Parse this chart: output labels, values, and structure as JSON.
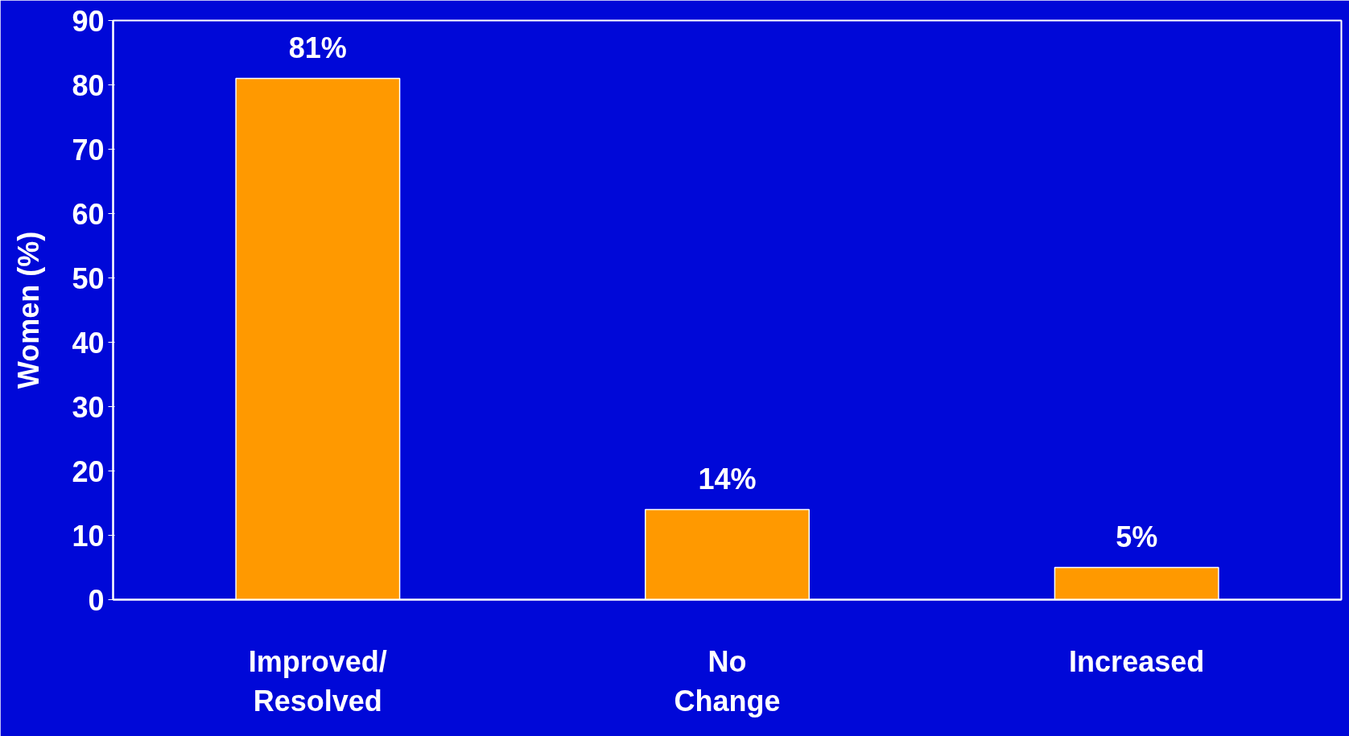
{
  "chart_data": {
    "type": "bar",
    "ylabel": "Women (%)",
    "categories": [
      "Improved/\nResolved",
      "No\nChange",
      "Increased"
    ],
    "values": [
      81,
      14,
      5
    ],
    "value_labels": [
      "81%",
      "14%",
      "5%"
    ],
    "color": "#ff9900",
    "ylim": [
      0,
      90
    ],
    "yticks": [
      0,
      10,
      20,
      30,
      40,
      50,
      60,
      70,
      80,
      90
    ],
    "grid": false
  }
}
